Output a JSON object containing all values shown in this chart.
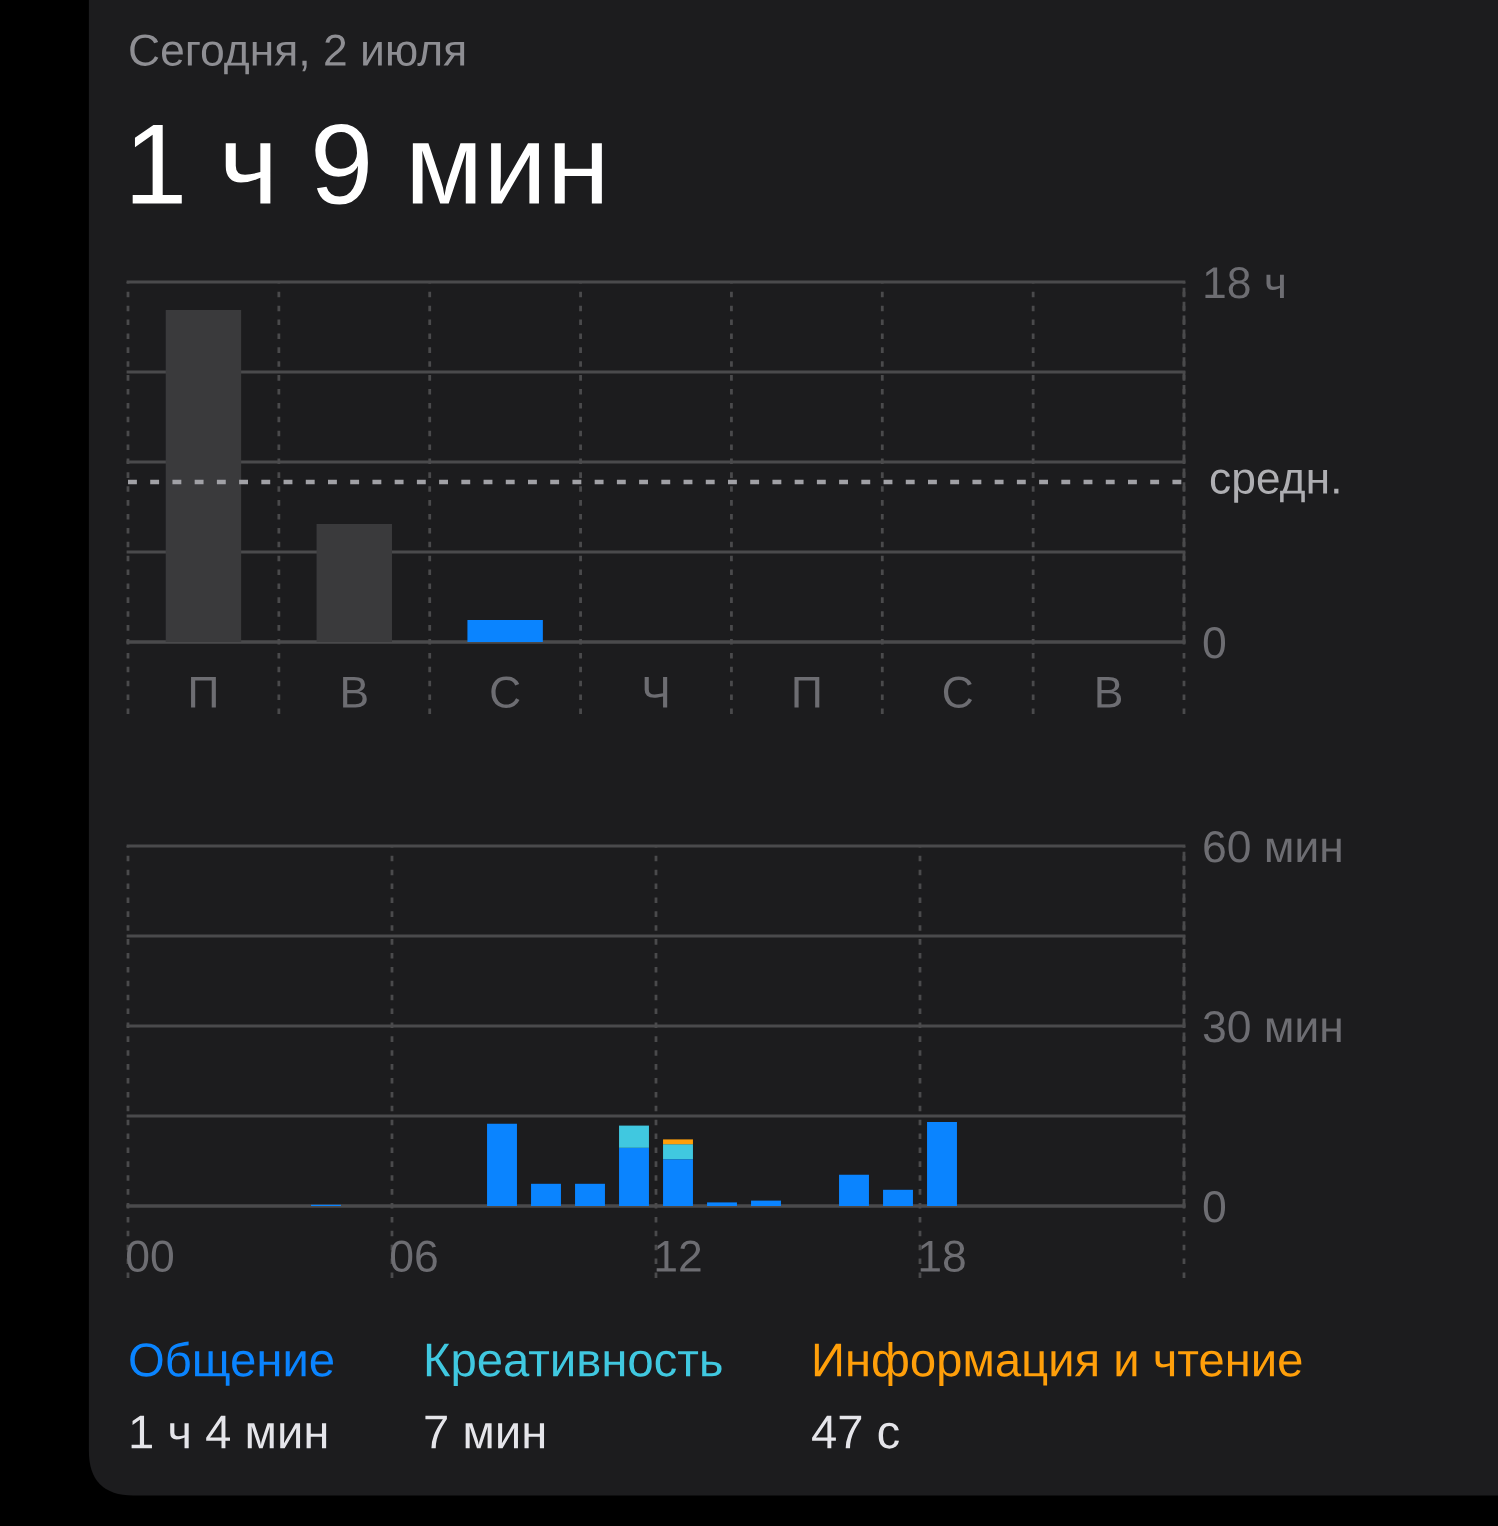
{
  "chart_data": [
    {
      "type": "bar",
      "title": "Сегодня, 2 июля",
      "subtitle": "1 ч 9 мин",
      "categories": [
        "П",
        "В",
        "С",
        "Ч",
        "П",
        "С",
        "В"
      ],
      "values": [
        16.6,
        5.9,
        1.1,
        null,
        null,
        null,
        null
      ],
      "colors": [
        "#3a3a3c",
        "#3a3a3c",
        "#0a84ff",
        null,
        null,
        null,
        null
      ],
      "ylim": [
        0,
        18
      ],
      "yticks": [
        0,
        {
          "value": 4.5,
          "label": null
        },
        {
          "value": 9,
          "label": null
        },
        {
          "value": 13.5,
          "label": null
        },
        {
          "value": 18,
          "label": "18 ч"
        }
      ],
      "grid": true,
      "ref_lines": [
        {
          "axis": "y",
          "value": 8,
          "label": "средн.",
          "color": "#a1a1a6",
          "line_style": "dotted"
        }
      ]
    },
    {
      "type": "bar",
      "stacked": true,
      "categories": [
        "00",
        null,
        null,
        null,
        null,
        null,
        "06",
        null,
        null,
        null,
        null,
        null,
        "12",
        null,
        null,
        null,
        null,
        null,
        "18",
        null,
        null,
        null,
        null,
        null
      ],
      "series": [
        {
          "name": "Общение",
          "color": "#0a84ff",
          "values": [
            null,
            null,
            null,
            null,
            0.2,
            null,
            null,
            null,
            13.7,
            3.7,
            3.7,
            9.7,
            7.8,
            0.6,
            0.9,
            null,
            5.2,
            2.7,
            14.0,
            null,
            null,
            null,
            null,
            null
          ]
        },
        {
          "name": "Креативность",
          "color": "#40c8e0",
          "values": [
            null,
            null,
            null,
            null,
            null,
            null,
            null,
            null,
            null,
            null,
            null,
            3.7,
            2.5,
            null,
            null,
            null,
            null,
            null,
            null,
            null,
            null,
            null,
            null,
            null
          ]
        },
        {
          "name": "Информация и чтение",
          "color": "#ff9f0a",
          "values": [
            null,
            null,
            null,
            null,
            null,
            null,
            null,
            null,
            null,
            null,
            null,
            null,
            0.8,
            null,
            null,
            null,
            null,
            null,
            null,
            null,
            null,
            null,
            null,
            null
          ]
        }
      ],
      "ylim": [
        0,
        60
      ],
      "yticks": [
        0,
        {
          "value": 15,
          "label": null
        },
        {
          "value": 30,
          "label": "30 мин"
        },
        {
          "value": 45,
          "label": null
        },
        {
          "value": 60,
          "label": "60 мин"
        }
      ],
      "grid": true,
      "legend": "bottom",
      "annotations": [
        "1 ч 4 мин",
        "7 мин",
        "47 с"
      ]
    }
  ]
}
